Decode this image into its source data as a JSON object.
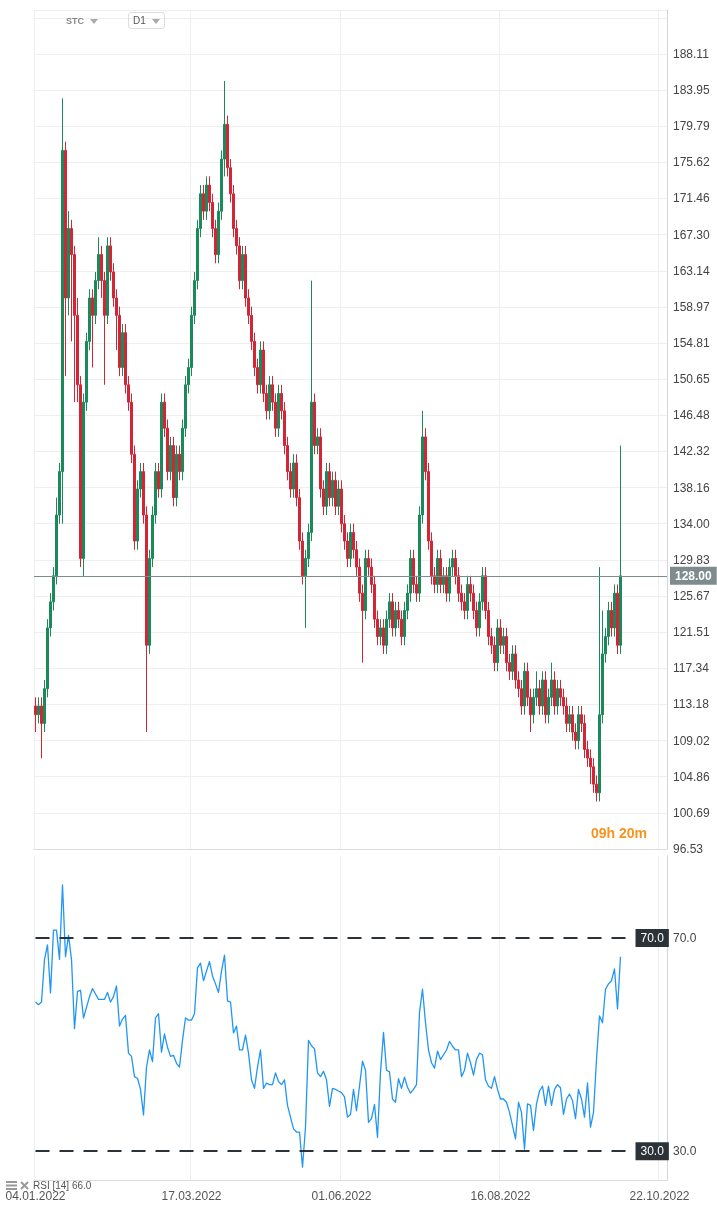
{
  "chart_data": [
    {
      "type": "candlestick",
      "annotations": [
        "STC",
        "D1",
        "09h 20m"
      ],
      "categories": [
        "04.01.2022",
        null,
        null,
        null,
        null,
        null,
        null,
        null,
        null,
        null,
        null,
        null,
        null,
        null,
        null,
        null,
        null,
        null,
        null,
        null,
        null,
        null,
        null,
        null,
        null,
        null,
        null,
        null,
        null,
        null,
        null,
        null,
        null,
        null,
        null,
        null,
        null,
        null,
        null,
        null,
        null,
        null,
        null,
        null,
        null,
        null,
        null,
        null,
        null,
        null,
        null,
        null,
        "17.03.2022",
        null,
        null,
        null,
        null,
        null,
        null,
        null,
        null,
        null,
        null,
        null,
        null,
        null,
        null,
        null,
        null,
        null,
        null,
        null,
        null,
        null,
        null,
        null,
        null,
        null,
        null,
        null,
        null,
        null,
        null,
        null,
        null,
        null,
        null,
        null,
        null,
        null,
        null,
        null,
        null,
        null,
        null,
        null,
        null,
        null,
        null,
        null,
        null,
        null,
        "01.06.2022",
        null,
        null,
        null,
        null,
        null,
        null,
        null,
        null,
        null,
        null,
        null,
        null,
        null,
        null,
        null,
        null,
        null,
        null,
        null,
        null,
        null,
        null,
        null,
        null,
        null,
        null,
        null,
        null,
        null,
        null,
        null,
        null,
        null,
        null,
        null,
        null,
        null,
        null,
        null,
        null,
        null,
        null,
        null,
        null,
        null,
        null,
        null,
        null,
        null,
        null,
        null,
        null,
        "16.08.2022",
        null,
        null,
        null,
        null,
        null,
        null,
        null,
        null,
        null,
        null,
        null,
        null,
        null,
        null,
        null,
        null,
        null,
        null,
        null,
        null,
        null,
        null,
        null,
        null,
        null,
        null,
        null,
        null,
        null,
        null,
        null,
        null,
        null,
        null,
        null,
        null,
        null,
        null,
        null,
        null,
        null,
        null,
        null,
        null,
        null,
        null,
        null,
        null,
        null,
        null,
        null,
        null,
        "22.10.2022",
        null,
        null
      ],
      "colors": [
        "#d32535",
        "#1b8a5a",
        "#d32535",
        "#1b8a5a",
        "#1b8a5a",
        "#1b8a5a",
        "#1b8a5a",
        "#1b8a5a",
        "#1b8a5a",
        "#1b8a5a",
        "#d32535",
        "#1b8a5a",
        "#d32535",
        "#d32535",
        "#d32535",
        "#d32535",
        "#1b8a5a",
        "#1b8a5a",
        "#1b8a5a",
        "#d32535",
        "#1b8a5a",
        "#1b8a5a",
        "#d32535",
        "#d32535",
        "#1b8a5a",
        "#d32535",
        "#d32535",
        "#d32535",
        "#d32535",
        "#1b8a5a",
        "#d32535",
        "#d32535",
        "#d32535",
        "#d32535",
        "#1b8a5a",
        "#1b8a5a",
        "#d32535",
        "#d32535",
        "#1b8a5a",
        "#1b8a5a",
        "#1b8a5a",
        "#d32535",
        "#1b8a5a",
        "#d32535",
        "#d32535",
        "#1b8a5a",
        "#d32535",
        "#1b8a5a",
        "#d32535",
        "#1b8a5a",
        "#1b8a5a",
        "#1b8a5a",
        "#1b8a5a",
        "#1b8a5a",
        "#1b8a5a",
        "#1b8a5a",
        "#d32535",
        "#1b8a5a",
        "#d32535",
        "#d32535",
        "#d32535",
        "#1b8a5a",
        "#1b8a5a",
        "#1b8a5a",
        "#d32535",
        "#d32535",
        "#d32535",
        "#d32535",
        "#d32535",
        "#1b8a5a",
        "#d32535",
        "#d32535",
        "#d32535",
        "#d32535",
        "#d32535",
        "#1b8a5a",
        "#d32535",
        "#d32535",
        "#1b8a5a",
        "#d32535",
        "#d32535",
        "#1b8a5a",
        "#d32535",
        "#d32535",
        "#d32535",
        "#d32535",
        "#1b8a5a",
        "#d32535",
        "#d32535",
        "#d32535",
        "#1b8a5a",
        "#1b8a5a",
        "#1b8a5a",
        "#d32535",
        "#1b8a5a",
        "#d32535",
        "#d32535",
        "#1b8a5a",
        "#d32535",
        "#1b8a5a",
        "#d32535",
        "#1b8a5a",
        "#d32535",
        "#d32535",
        "#d32535",
        "#1b8a5a",
        "#d32535",
        "#d32535",
        "#d32535",
        "#d32535",
        "#1b8a5a",
        "#d32535",
        "#d32535",
        "#d32535",
        "#d32535",
        "#1b8a5a",
        "#d32535",
        "#1b8a5a",
        "#1b8a5a",
        "#d32535",
        "#1b8a5a",
        "#d32535",
        "#d32535",
        "#1b8a5a",
        "#1b8a5a",
        "#1b8a5a",
        "#d32535",
        "#d32535",
        "#1b8a5a",
        "#1b8a5a",
        "#d32535",
        "#d32535",
        "#d32535",
        "#d32535",
        "#1b8a5a",
        "#d32535",
        "#1b8a5a",
        "#d32535",
        "#1b8a5a",
        "#1b8a5a",
        "#d32535",
        "#d32535",
        "#d32535",
        "#d32535",
        "#1b8a5a",
        "#d32535",
        "#d32535",
        "#d32535",
        "#1b8a5a",
        "#1b8a5a",
        "#d32535",
        "#d32535",
        "#d32535",
        "#d32535",
        "#1b8a5a",
        "#d32535",
        "#1b8a5a",
        "#d32535",
        "#d32535",
        "#1b8a5a",
        "#d32535",
        "#d32535",
        "#d32535",
        "#1b8a5a",
        "#d32535",
        "#d32535",
        "#1b8a5a",
        "#1b8a5a",
        "#d32535",
        "#1b8a5a",
        "#d32535",
        "#1b8a5a",
        "#1b8a5a",
        "#d32535",
        "#1b8a5a",
        "#d32535",
        "#d32535",
        "#d32535",
        "#1b8a5a",
        "#d32535",
        "#d32535",
        "#1b8a5a",
        "#d32535",
        "#d32535",
        "#d32535",
        "#d32535",
        "#d32535",
        "#d32535",
        "#1b8a5a",
        "#1b8a5a",
        "#1b8a5a",
        "#1b8a5a",
        "#d32535",
        "#1b8a5a",
        "#d32535",
        "#1b8a5a",
        null,
        null,
        null,
        null,
        null,
        null,
        null,
        null,
        null,
        null,
        null,
        null,
        null,
        null,
        null
      ],
      "ohlc": [
        [
          113,
          114,
          110,
          112
        ],
        [
          112,
          114,
          111,
          113
        ],
        [
          113,
          114,
          107,
          111
        ],
        [
          111,
          116,
          110,
          115
        ],
        [
          115,
          123,
          114,
          122
        ],
        [
          122,
          126,
          121,
          125
        ],
        [
          125,
          129,
          124,
          128
        ],
        [
          128,
          137,
          127,
          135
        ],
        [
          135,
          141,
          134,
          140
        ],
        [
          140,
          183,
          134,
          177
        ],
        [
          177,
          178,
          151,
          160
        ],
        [
          160,
          170,
          158,
          168
        ],
        [
          168,
          169,
          155,
          165
        ],
        [
          165,
          166,
          148,
          158
        ],
        [
          158,
          160,
          148,
          150
        ],
        [
          150,
          151,
          129,
          130
        ],
        [
          130,
          149,
          128,
          148
        ],
        [
          148,
          156,
          147,
          155
        ],
        [
          155,
          161,
          154,
          160
        ],
        [
          160,
          161,
          152,
          158
        ],
        [
          158,
          163,
          157,
          162
        ],
        [
          162,
          167,
          161,
          165
        ],
        [
          165,
          166,
          160,
          162
        ],
        [
          162,
          163,
          150,
          158
        ],
        [
          158,
          167,
          157,
          166
        ],
        [
          166,
          167,
          162,
          163
        ],
        [
          163,
          164,
          159,
          160
        ],
        [
          160,
          161,
          154,
          158
        ],
        [
          158,
          159,
          151,
          152
        ],
        [
          152,
          157,
          151,
          156
        ],
        [
          156,
          157,
          149,
          150
        ],
        [
          150,
          151,
          147,
          148
        ],
        [
          148,
          149,
          141,
          142
        ],
        [
          142,
          143,
          131,
          132
        ],
        [
          132,
          139,
          131,
          138
        ],
        [
          138,
          141,
          137,
          140
        ],
        [
          140,
          141,
          134,
          135
        ],
        [
          135,
          136,
          110,
          120
        ],
        [
          120,
          131,
          119,
          130
        ],
        [
          130,
          136,
          129,
          135
        ],
        [
          135,
          141,
          134,
          140
        ],
        [
          140,
          141,
          137,
          138
        ],
        [
          138,
          149,
          137,
          148
        ],
        [
          148,
          149,
          144,
          145
        ],
        [
          145,
          146,
          139,
          140
        ],
        [
          140,
          144,
          139,
          143
        ],
        [
          143,
          144,
          136,
          137
        ],
        [
          137,
          143,
          136,
          142
        ],
        [
          142,
          143,
          139,
          140
        ],
        [
          140,
          146,
          139,
          145
        ],
        [
          145,
          151,
          144,
          150
        ],
        [
          150,
          153,
          149,
          152
        ],
        [
          152,
          159,
          151,
          158
        ],
        [
          158,
          163,
          157,
          162
        ],
        [
          162,
          169,
          161,
          168
        ],
        [
          168,
          173,
          167,
          172
        ],
        [
          172,
          173,
          169,
          170
        ],
        [
          170,
          174,
          169,
          173
        ],
        [
          173,
          174,
          170,
          171
        ],
        [
          171,
          172,
          167,
          168
        ],
        [
          168,
          169,
          164,
          165
        ],
        [
          165,
          171,
          164,
          170
        ],
        [
          170,
          177,
          169,
          176
        ],
        [
          176,
          185,
          174,
          180
        ],
        [
          180,
          181,
          174,
          175
        ],
        [
          175,
          176,
          171,
          172
        ],
        [
          172,
          173,
          167,
          168
        ],
        [
          168,
          169,
          165,
          166
        ],
        [
          166,
          167,
          161,
          162
        ],
        [
          162,
          166,
          161,
          165
        ],
        [
          165,
          166,
          159,
          160
        ],
        [
          160,
          161,
          157,
          158
        ],
        [
          158,
          159,
          154,
          155
        ],
        [
          155,
          156,
          151,
          152
        ],
        [
          152,
          153,
          149,
          150
        ],
        [
          150,
          155,
          149,
          154
        ],
        [
          154,
          155,
          148,
          149
        ],
        [
          149,
          150,
          146,
          147
        ],
        [
          147,
          151,
          146,
          150
        ],
        [
          150,
          151,
          147,
          148
        ],
        [
          148,
          149,
          144,
          145
        ],
        [
          145,
          150,
          144,
          149
        ],
        [
          149,
          150,
          146,
          147
        ],
        [
          147,
          148,
          142,
          143
        ],
        [
          143,
          144,
          139,
          140
        ],
        [
          140,
          141,
          137,
          138
        ],
        [
          138,
          142,
          137,
          141
        ],
        [
          141,
          142,
          136,
          137
        ],
        [
          137,
          138,
          131,
          132
        ],
        [
          132,
          133,
          127,
          128
        ],
        [
          128,
          131,
          122,
          130
        ],
        [
          130,
          134,
          129,
          133
        ],
        [
          133,
          162,
          132,
          148
        ],
        [
          148,
          149,
          142,
          143
        ],
        [
          143,
          145,
          142,
          144
        ],
        [
          144,
          145,
          137,
          138
        ],
        [
          138,
          139,
          135,
          136
        ],
        [
          136,
          141,
          135,
          140
        ],
        [
          140,
          141,
          136,
          137
        ],
        [
          137,
          140,
          136,
          139
        ],
        [
          139,
          140,
          135,
          136
        ],
        [
          136,
          139,
          135,
          138
        ],
        [
          138,
          139,
          133,
          134
        ],
        [
          134,
          135,
          131,
          132
        ],
        [
          132,
          133,
          129,
          130
        ],
        [
          130,
          134,
          129,
          133
        ],
        [
          133,
          134,
          130,
          131
        ],
        [
          131,
          132,
          128,
          129
        ],
        [
          129,
          130,
          125,
          126
        ],
        [
          126,
          127,
          118,
          124
        ],
        [
          124,
          131,
          123,
          130
        ],
        [
          130,
          131,
          128,
          129
        ],
        [
          129,
          130,
          126,
          127
        ],
        [
          127,
          128,
          122,
          123
        ],
        [
          123,
          124,
          120,
          121
        ],
        [
          121,
          123,
          120,
          122
        ],
        [
          122,
          123,
          119,
          120
        ],
        [
          120,
          124,
          119,
          123
        ],
        [
          123,
          126,
          122,
          125
        ],
        [
          125,
          126,
          121,
          122
        ],
        [
          122,
          125,
          121,
          124
        ],
        [
          124,
          125,
          122,
          123
        ],
        [
          123,
          124,
          120,
          121
        ],
        [
          121,
          125,
          120,
          124
        ],
        [
          124,
          127,
          123,
          126
        ],
        [
          126,
          131,
          125,
          130
        ],
        [
          130,
          131,
          126,
          127
        ],
        [
          127,
          128,
          125,
          126
        ],
        [
          126,
          136,
          125,
          135
        ],
        [
          135,
          147,
          134,
          144
        ],
        [
          144,
          145,
          139,
          140
        ],
        [
          140,
          141,
          131,
          132
        ],
        [
          132,
          133,
          127,
          128
        ],
        [
          128,
          129,
          126,
          127
        ],
        [
          127,
          131,
          126,
          130
        ],
        [
          130,
          131,
          126,
          127
        ],
        [
          127,
          129,
          126,
          128
        ],
        [
          128,
          129,
          125,
          126
        ],
        [
          126,
          130,
          125,
          129
        ],
        [
          129,
          131,
          128,
          130
        ],
        [
          130,
          131,
          127,
          128
        ],
        [
          128,
          129,
          125,
          126
        ],
        [
          126,
          127,
          124,
          125
        ],
        [
          125,
          126,
          123,
          124
        ],
        [
          124,
          128,
          123,
          127
        ],
        [
          127,
          128,
          125,
          126
        ],
        [
          126,
          127,
          123,
          124
        ],
        [
          124,
          125,
          121,
          122
        ],
        [
          122,
          126,
          121,
          125
        ],
        [
          125,
          129,
          124,
          128
        ],
        [
          128,
          129,
          123,
          124
        ],
        [
          124,
          125,
          120,
          121
        ],
        [
          121,
          122,
          119,
          120
        ],
        [
          120,
          121,
          117,
          118
        ],
        [
          118,
          123,
          117,
          122
        ],
        [
          122,
          123,
          119,
          120
        ],
        [
          120,
          122,
          119,
          121
        ],
        [
          121,
          122,
          117,
          118
        ],
        [
          118,
          119,
          116,
          117
        ],
        [
          117,
          120,
          116,
          119
        ],
        [
          119,
          120,
          115,
          116
        ],
        [
          116,
          117,
          114,
          115
        ],
        [
          115,
          116,
          112,
          113
        ],
        [
          113,
          118,
          112,
          117
        ],
        [
          117,
          118,
          113,
          114
        ],
        [
          114,
          115,
          110,
          112
        ],
        [
          112,
          115,
          111,
          114
        ],
        [
          114,
          117,
          113,
          115
        ],
        [
          115,
          116,
          112,
          113
        ],
        [
          113,
          117,
          112,
          116
        ],
        [
          116,
          117,
          111,
          112
        ],
        [
          112,
          115,
          111,
          114
        ],
        [
          114,
          118,
          113,
          116
        ],
        [
          116,
          117,
          112,
          113
        ],
        [
          113,
          116,
          112,
          115
        ],
        [
          115,
          116,
          113,
          114
        ],
        [
          114,
          115,
          112,
          113
        ],
        [
          113,
          114,
          110,
          111
        ],
        [
          111,
          113,
          110,
          112
        ],
        [
          112,
          113,
          109,
          110
        ],
        [
          110,
          111,
          108,
          109
        ],
        [
          109,
          113,
          108,
          112
        ],
        [
          112,
          113,
          110,
          111
        ],
        [
          111,
          112,
          107,
          108
        ],
        [
          108,
          109,
          106,
          107
        ],
        [
          107,
          108,
          104,
          106
        ],
        [
          106,
          107,
          103,
          104
        ],
        [
          104,
          105,
          102,
          103
        ],
        [
          103,
          129,
          102,
          112
        ],
        [
          112,
          124,
          111,
          119
        ],
        [
          119,
          122,
          118,
          121
        ],
        [
          121,
          125,
          120,
          124
        ],
        [
          124,
          125,
          121,
          122
        ],
        [
          122,
          127,
          121,
          126
        ],
        [
          126,
          127,
          119,
          120
        ],
        [
          120,
          143,
          119,
          128
        ],
        null,
        null,
        null,
        null,
        null,
        null,
        null,
        null,
        null,
        null,
        null,
        null,
        null,
        null,
        null
      ],
      "ylim": [
        96.53,
        193.17
      ],
      "yticks": [
        96.53,
        100.69,
        104.86,
        109.02,
        113.18,
        117.34,
        121.51,
        125.67,
        129.83,
        {
          "value": 134,
          "label": "134.00"
        },
        138.16,
        142.32,
        146.48,
        150.65,
        154.81,
        158.97,
        163.14,
        {
          "value": 167.3,
          "label": "167.30"
        },
        171.46,
        175.62,
        179.79,
        183.95,
        188.11
      ],
      "grid": true,
      "tick_labels": "y",
      "ref_lines": [
        {
          "axis": "y",
          "value": 128,
          "label": "128.00",
          "color": "#7f8c8d"
        }
      ]
    },
    {
      "type": "line",
      "title": "RSI [14] 66.0",
      "categories": [
        "04.01.2022",
        null,
        null,
        null,
        null,
        null,
        null,
        null,
        null,
        null,
        null,
        null,
        null,
        null,
        null,
        null,
        null,
        null,
        null,
        null,
        null,
        null,
        null,
        null,
        null,
        null,
        null,
        null,
        null,
        null,
        null,
        null,
        null,
        null,
        null,
        null,
        null,
        null,
        null,
        null,
        null,
        null,
        null,
        null,
        null,
        null,
        null,
        null,
        null,
        null,
        null,
        null,
        "17.03.2022",
        null,
        null,
        null,
        null,
        null,
        null,
        null,
        null,
        null,
        null,
        null,
        null,
        null,
        null,
        null,
        null,
        null,
        null,
        null,
        null,
        null,
        null,
        null,
        null,
        null,
        null,
        null,
        null,
        null,
        null,
        null,
        null,
        null,
        null,
        null,
        null,
        null,
        null,
        null,
        null,
        null,
        null,
        null,
        null,
        null,
        null,
        null,
        null,
        null,
        "01.06.2022",
        null,
        null,
        null,
        null,
        null,
        null,
        null,
        null,
        null,
        null,
        null,
        null,
        null,
        null,
        null,
        null,
        null,
        null,
        null,
        null,
        null,
        null,
        null,
        null,
        null,
        null,
        null,
        null,
        null,
        null,
        null,
        null,
        null,
        null,
        null,
        null,
        null,
        null,
        null,
        null,
        null,
        null,
        null,
        null,
        null,
        null,
        null,
        null,
        null,
        null,
        null,
        null,
        "16.08.2022",
        null,
        null,
        null,
        null,
        null,
        null,
        null,
        null,
        null,
        null,
        null,
        null,
        null,
        null,
        null,
        null,
        null,
        null,
        null,
        null,
        null,
        null,
        null,
        null,
        null,
        null,
        null,
        null,
        null,
        null,
        null,
        null,
        null,
        null,
        null,
        null,
        null,
        null,
        null,
        null,
        null,
        null,
        null,
        null,
        null,
        null,
        null,
        null,
        null,
        null,
        null,
        null,
        "22.10.2022",
        null,
        null
      ],
      "series": [
        {
          "color": "#2196f3",
          "values": [
            58,
            57.5,
            58,
            66,
            68.7,
            59.7,
            71.5,
            71.5,
            66,
            80,
            66.5,
            70.5,
            66,
            53,
            60,
            60.2,
            55,
            57,
            59,
            60.5,
            59.5,
            58.5,
            58.5,
            58.5,
            59.8,
            58,
            59,
            61,
            53.5,
            54.8,
            55.5,
            48.4,
            47.8,
            44,
            43.7,
            41.6,
            36.8,
            45.8,
            49,
            46.8,
            55,
            55.8,
            48.6,
            52,
            49.5,
            47.8,
            48,
            46.5,
            45.8,
            50.8,
            55,
            54.6,
            54.6,
            55.8,
            64.4,
            65.3,
            62,
            63.8,
            65.6,
            62.9,
            61.4,
            59.8,
            63.8,
            66.8,
            58.2,
            58,
            52.2,
            53.5,
            49,
            49,
            51.8,
            48.4,
            43.4,
            41.8,
            45.8,
            49,
            41.8,
            42.8,
            42.5,
            42.5,
            44.7,
            43.1,
            42.5,
            43.4,
            38.6,
            36.4,
            34.2,
            33.6,
            33.6,
            27,
            34.5,
            50.8,
            49.8,
            49.2,
            44.7,
            44,
            45,
            43.4,
            38.4,
            41.8,
            41.6,
            41.3,
            41,
            40.2,
            36.4,
            36.9,
            41.6,
            37.6,
            42.2,
            46.9,
            45.2,
            35.4,
            36.1,
            38.8,
            32.6,
            44.8,
            52.3,
            45.2,
            44.9,
            39.8,
            39.2,
            43.6,
            41.8,
            43.9,
            42,
            40.9,
            41.6,
            42.5,
            56,
            60.4,
            54.1,
            49,
            46.6,
            45.6,
            48.8,
            47.2,
            48.1,
            49,
            50.6,
            49.7,
            49,
            49,
            44,
            45.2,
            48.4,
            46.6,
            44.3,
            47.2,
            48.4,
            48.1,
            43.4,
            42.2,
            41.8,
            44,
            41.6,
            39.8,
            39.8,
            39.2,
            37.3,
            34.8,
            32.3,
            39.2,
            37.3,
            30.4,
            38.9,
            38.6,
            33.9,
            38.9,
            41.3,
            42.2,
            38.6,
            42.2,
            38.6,
            41.6,
            42.5,
            41.9,
            36.9,
            39.8,
            40.7,
            39.5,
            36.1,
            41.6,
            39.8,
            36.4,
            42.8,
            34.5,
            37.3,
            47.2,
            55.4,
            54.1,
            60.4,
            61.4,
            62,
            64.2,
            56.7,
            66.5,
            null,
            null,
            null,
            null,
            null,
            null,
            null,
            null,
            null,
            null,
            null,
            null,
            null,
            null,
            null
          ]
        }
      ],
      "ylim": [
        24.6,
        85.4
      ],
      "yticks": [
        {
          "value": 30,
          "label": "30.0"
        },
        {
          "value": 70,
          "label": "70.0"
        }
      ],
      "grid": "x",
      "ref_lines": [
        {
          "axis": "y",
          "value": 70,
          "label": "70.0",
          "color": "#2b3339",
          "line_style": "dashed"
        },
        {
          "axis": "y",
          "value": 30,
          "label": "30.0",
          "color": "#2b3339",
          "line_style": "dashed"
        }
      ]
    }
  ]
}
